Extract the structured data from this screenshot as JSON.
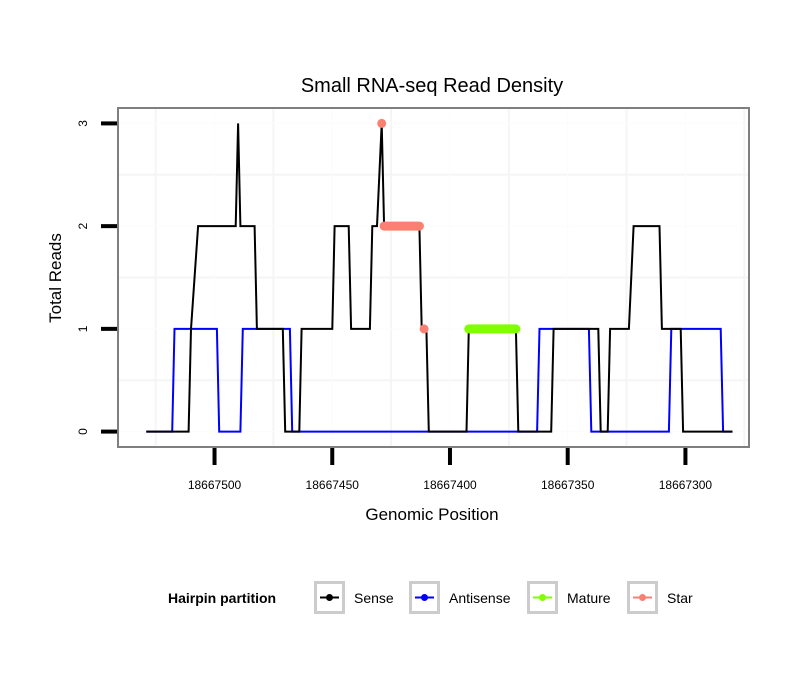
{
  "chart_data": {
    "type": "line",
    "title": "Small RNA-seq Read Density",
    "xlabel": "Genomic Position",
    "ylabel": "Total Reads",
    "x_reversed": true,
    "xlim": [
      18667541,
      18667273
    ],
    "ylim": [
      -0.15,
      3.15
    ],
    "x_ticks": [
      18667500,
      18667450,
      18667400,
      18667350,
      18667300
    ],
    "x_tick_labels": [
      "18667500",
      "18667450",
      "18667400",
      "18667350",
      "18667300"
    ],
    "y_ticks": [
      0,
      1,
      2,
      3
    ],
    "y_tick_labels": [
      "0",
      "1",
      "2",
      "3"
    ],
    "grid": true,
    "legend": {
      "title": "Hairpin partition",
      "position": "bottom",
      "entries": [
        {
          "label": "Sense",
          "color": "#000000"
        },
        {
          "label": "Antisense",
          "color": "#0000ff"
        },
        {
          "label": "Mature",
          "color": "#7fff00"
        },
        {
          "label": "Star",
          "color": "#fa8072"
        }
      ]
    },
    "series": [
      {
        "name": "Antisense",
        "color": "#0000ff",
        "style": "line",
        "points": [
          [
            18667529,
            0
          ],
          [
            18667518,
            0
          ],
          [
            18667517,
            1
          ],
          [
            18667499,
            1
          ],
          [
            18667498,
            0
          ],
          [
            18667489,
            0
          ],
          [
            18667488,
            1
          ],
          [
            18667468,
            1
          ],
          [
            18667467,
            0
          ],
          [
            18667363,
            0
          ],
          [
            18667362,
            1
          ],
          [
            18667341,
            1
          ],
          [
            18667340,
            0
          ],
          [
            18667307,
            0
          ],
          [
            18667306,
            1
          ],
          [
            18667285,
            1
          ],
          [
            18667284,
            0
          ],
          [
            18667280,
            0
          ]
        ]
      },
      {
        "name": "Sense",
        "color": "#000000",
        "style": "line",
        "points": [
          [
            18667529,
            0
          ],
          [
            18667511,
            0
          ],
          [
            18667510,
            1
          ],
          [
            18667507,
            2
          ],
          [
            18667491,
            2
          ],
          [
            18667490,
            3
          ],
          [
            18667489,
            2
          ],
          [
            18667483,
            2
          ],
          [
            18667482,
            1
          ],
          [
            18667471,
            1
          ],
          [
            18667470,
            0
          ],
          [
            18667464,
            0
          ],
          [
            18667463,
            1
          ],
          [
            18667450,
            1
          ],
          [
            18667449,
            2
          ],
          [
            18667443,
            2
          ],
          [
            18667442,
            1
          ],
          [
            18667434,
            1
          ],
          [
            18667433,
            2
          ],
          [
            18667431,
            2
          ],
          [
            18667429,
            3
          ],
          [
            18667428,
            2
          ],
          [
            18667413,
            2
          ],
          [
            18667412,
            1
          ],
          [
            18667410,
            1
          ],
          [
            18667409,
            0
          ],
          [
            18667393,
            0
          ],
          [
            18667392,
            1
          ],
          [
            18667372,
            1
          ],
          [
            18667371,
            0
          ],
          [
            18667357,
            0
          ],
          [
            18667356,
            1
          ],
          [
            18667337,
            1
          ],
          [
            18667336,
            0
          ],
          [
            18667333,
            0
          ],
          [
            18667332,
            1
          ],
          [
            18667324,
            1
          ],
          [
            18667322,
            2
          ],
          [
            18667311,
            2
          ],
          [
            18667310,
            1
          ],
          [
            18667302,
            1
          ],
          [
            18667301,
            0
          ],
          [
            18667280,
            0
          ]
        ]
      },
      {
        "name": "Mature",
        "color": "#7fff00",
        "style": "thick",
        "points": [
          [
            18667392,
            1
          ],
          [
            18667372,
            1
          ]
        ]
      },
      {
        "name": "Star",
        "color": "#fa8072",
        "style": "thick",
        "points": [
          [
            18667429,
            3
          ],
          [
            18667428,
            2
          ],
          [
            18667413,
            2
          ],
          [
            18667411,
            1
          ]
        ],
        "segments": [
          [
            [
              18667429,
              3
            ],
            [
              18667429,
              3
            ]
          ],
          [
            [
              18667428,
              2
            ],
            [
              18667413,
              2
            ]
          ],
          [
            [
              18667411,
              1
            ],
            [
              18667411,
              1
            ]
          ]
        ]
      }
    ]
  }
}
